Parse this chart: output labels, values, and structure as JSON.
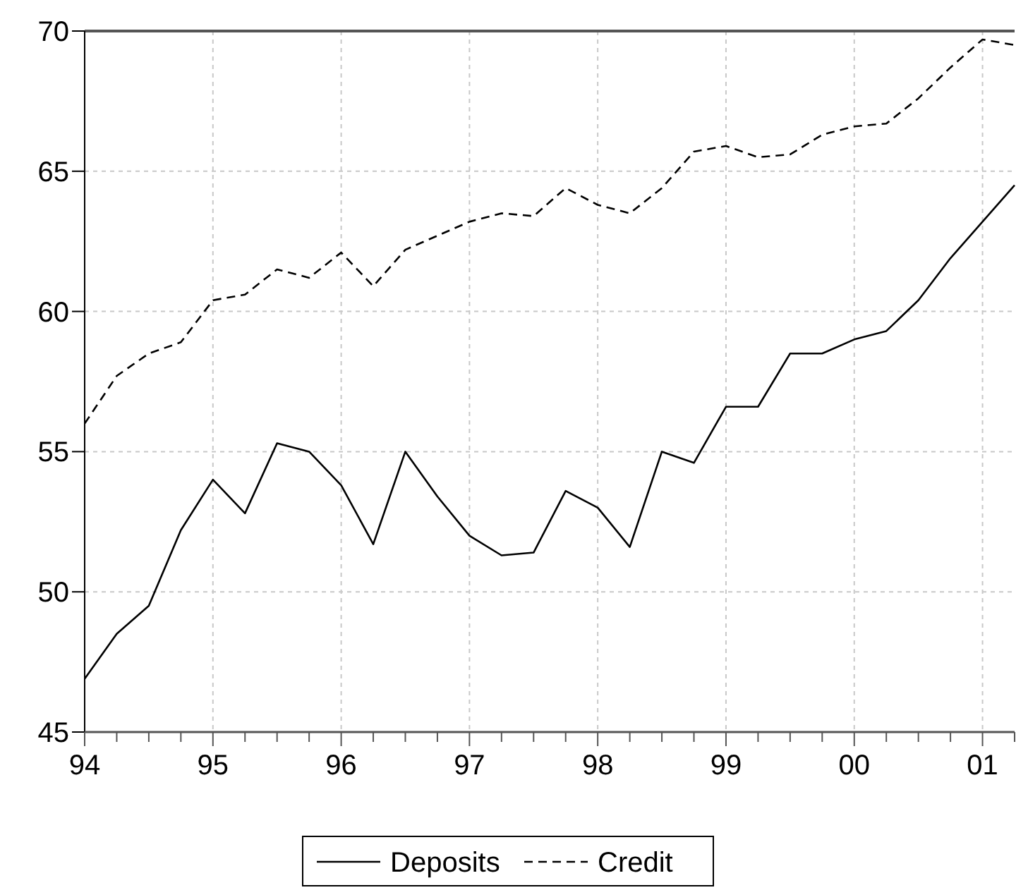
{
  "chart_data": {
    "type": "line",
    "x": [
      1994,
      1994.25,
      1994.5,
      1994.75,
      1995,
      1995.25,
      1995.5,
      1995.75,
      1996,
      1996.25,
      1996.5,
      1996.75,
      1997,
      1997.25,
      1997.5,
      1997.75,
      1998,
      1998.25,
      1998.5,
      1998.75,
      1999,
      1999.25,
      1999.5,
      1999.75,
      2000,
      2000.25,
      2000.5,
      2000.75,
      2001,
      2001.25
    ],
    "series": [
      {
        "name": "Deposits",
        "color": "#000000",
        "line_style": "solid",
        "values": [
          46.9,
          48.5,
          49.5,
          52.2,
          54.0,
          52.8,
          55.3,
          55.0,
          53.8,
          51.7,
          55.0,
          53.4,
          52.0,
          51.3,
          51.4,
          53.6,
          53.0,
          51.6,
          55.0,
          54.6,
          56.6,
          56.6,
          58.5,
          58.5,
          59.0,
          59.3,
          60.4,
          61.9,
          63.2,
          64.5
        ]
      },
      {
        "name": "Credit",
        "color": "#000000",
        "line_style": "dashed",
        "values": [
          56.0,
          57.7,
          58.5,
          58.9,
          60.4,
          60.6,
          61.5,
          61.2,
          62.1,
          60.9,
          62.2,
          62.7,
          63.2,
          63.5,
          63.4,
          64.4,
          63.8,
          63.5,
          64.4,
          65.7,
          65.9,
          65.5,
          65.6,
          66.3,
          66.6,
          66.7,
          67.6,
          68.7,
          69.7,
          69.5
        ]
      }
    ],
    "xlim": [
      1994,
      2001.25
    ],
    "xticks": [
      {
        "value": 1994,
        "label": "94"
      },
      {
        "value": 1994.25,
        "label": null
      },
      {
        "value": 1994.5,
        "label": null
      },
      {
        "value": 1994.75,
        "label": null
      },
      {
        "value": 1995,
        "label": "95"
      },
      {
        "value": 1995.25,
        "label": null
      },
      {
        "value": 1995.5,
        "label": null
      },
      {
        "value": 1995.75,
        "label": null
      },
      {
        "value": 1996,
        "label": "96"
      },
      {
        "value": 1996.25,
        "label": null
      },
      {
        "value": 1996.5,
        "label": null
      },
      {
        "value": 1996.75,
        "label": null
      },
      {
        "value": 1997,
        "label": "97"
      },
      {
        "value": 1997.25,
        "label": null
      },
      {
        "value": 1997.5,
        "label": null
      },
      {
        "value": 1997.75,
        "label": null
      },
      {
        "value": 1998,
        "label": "98"
      },
      {
        "value": 1998.25,
        "label": null
      },
      {
        "value": 1998.5,
        "label": null
      },
      {
        "value": 1998.75,
        "label": null
      },
      {
        "value": 1999,
        "label": "99"
      },
      {
        "value": 1999.25,
        "label": null
      },
      {
        "value": 1999.5,
        "label": null
      },
      {
        "value": 1999.75,
        "label": null
      },
      {
        "value": 2000,
        "label": "00"
      },
      {
        "value": 2000.25,
        "label": null
      },
      {
        "value": 2000.5,
        "label": null
      },
      {
        "value": 2000.75,
        "label": null
      },
      {
        "value": 2001,
        "label": "01"
      },
      {
        "value": 2001.25,
        "label": null
      }
    ],
    "ylim": [
      45,
      70
    ],
    "yticks": [
      45,
      50,
      55,
      60,
      65,
      70
    ],
    "grid": true,
    "legend": "bottom"
  }
}
